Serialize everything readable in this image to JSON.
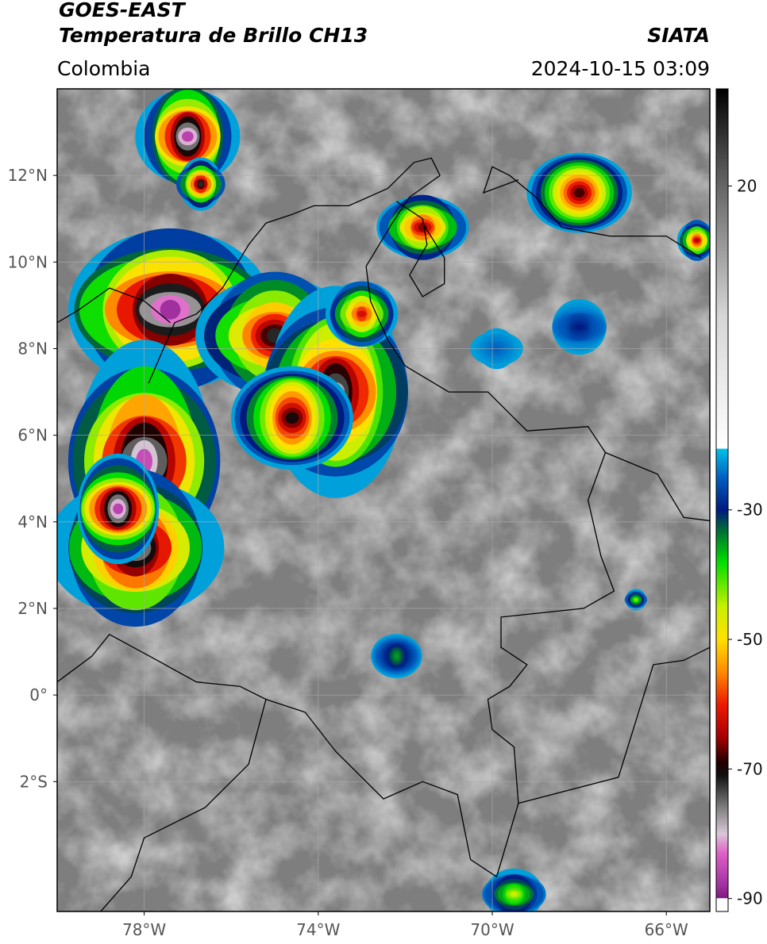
{
  "header": {
    "satellite": "GOES-EAST",
    "product": "Temperatura de Brillo CH13",
    "brand": "SIATA",
    "region": "Colombia",
    "timestamp": "2024-10-15 03:09"
  },
  "map": {
    "lon_range": [
      -80,
      -65
    ],
    "lat_range": [
      -5,
      14
    ],
    "lon_ticks": [
      {
        "value": -78,
        "label": "78°W"
      },
      {
        "value": -74,
        "label": "74°W"
      },
      {
        "value": -70,
        "label": "70°W"
      },
      {
        "value": -66,
        "label": "66°W"
      }
    ],
    "lat_ticks": [
      {
        "value": 12,
        "label": "12°N"
      },
      {
        "value": 10,
        "label": "10°N"
      },
      {
        "value": 8,
        "label": "8°N"
      },
      {
        "value": 6,
        "label": "6°N"
      },
      {
        "value": 4,
        "label": "4°N"
      },
      {
        "value": 2,
        "label": "2°N"
      },
      {
        "value": 0,
        "label": "0°"
      },
      {
        "value": -2,
        "label": "2°S"
      }
    ],
    "storm_cells": [
      {
        "lon": -77.4,
        "lat": 8.9,
        "rlon": 2.7,
        "rlat": 1.6,
        "peak": -88
      },
      {
        "lon": -75.0,
        "lat": 8.3,
        "rlon": 1.9,
        "rlat": 1.3,
        "peak": -72
      },
      {
        "lon": -73.6,
        "lat": 7.0,
        "rlon": 1.9,
        "rlat": 2.0,
        "peak": -78
      },
      {
        "lon": -74.6,
        "lat": 6.4,
        "rlon": 1.4,
        "rlat": 1.2,
        "peak": -70
      },
      {
        "lon": -78.0,
        "lat": 5.4,
        "rlon": 2.0,
        "rlat": 2.2,
        "peak": -85
      },
      {
        "lon": -78.2,
        "lat": 3.4,
        "rlon": 2.0,
        "rlat": 1.6,
        "peak": -80
      },
      {
        "lon": -78.6,
        "lat": 4.3,
        "rlon": 1.2,
        "rlat": 1.0,
        "peak": -86
      },
      {
        "lon": -77.0,
        "lat": 12.9,
        "rlon": 1.2,
        "rlat": 1.1,
        "peak": -86
      },
      {
        "lon": -76.7,
        "lat": 11.8,
        "rlon": 0.6,
        "rlat": 0.5,
        "peak": -72
      },
      {
        "lon": -71.6,
        "lat": 10.8,
        "rlon": 1.1,
        "rlat": 0.7,
        "peak": -66
      },
      {
        "lon": -68.0,
        "lat": 11.6,
        "rlon": 1.4,
        "rlat": 0.8,
        "peak": -68
      },
      {
        "lon": -65.3,
        "lat": 10.5,
        "rlon": 0.5,
        "rlat": 0.4,
        "peak": -64
      },
      {
        "lon": -73.0,
        "lat": 8.8,
        "rlon": 0.9,
        "rlat": 0.7,
        "peak": -62
      },
      {
        "lon": -69.5,
        "lat": -4.6,
        "rlon": 0.8,
        "rlat": 0.5,
        "peak": -45
      },
      {
        "lon": -72.2,
        "lat": 0.9,
        "rlon": 0.6,
        "rlat": 0.5,
        "peak": -35
      },
      {
        "lon": -66.7,
        "lat": 2.2,
        "rlon": 0.3,
        "rlat": 0.2,
        "peak": -42
      },
      {
        "lon": -69.9,
        "lat": 8.0,
        "rlon": 0.6,
        "rlat": 0.4,
        "peak": -25
      },
      {
        "lon": -68.0,
        "lat": 8.5,
        "rlon": 0.8,
        "rlat": 0.5,
        "peak": -30
      }
    ],
    "borders": [
      [
        [
          -77.9,
          7.2
        ],
        [
          -77.3,
          8.6
        ],
        [
          -76.8,
          8.8
        ],
        [
          -76.2,
          9.4
        ],
        [
          -75.6,
          10.4
        ],
        [
          -75.2,
          10.9
        ],
        [
          -74.6,
          11.1
        ],
        [
          -74.1,
          11.3
        ],
        [
          -73.3,
          11.3
        ],
        [
          -72.4,
          11.7
        ],
        [
          -71.8,
          12.3
        ],
        [
          -71.4,
          12.4
        ],
        [
          -71.2,
          12.0
        ]
      ],
      [
        [
          -71.2,
          12.0
        ],
        [
          -71.9,
          11.5
        ],
        [
          -72.3,
          10.9
        ],
        [
          -72.9,
          9.9
        ],
        [
          -72.8,
          9.1
        ],
        [
          -72.4,
          8.2
        ],
        [
          -72.0,
          7.6
        ],
        [
          -71.0,
          7.0
        ],
        [
          -70.1,
          7.0
        ],
        [
          -69.2,
          6.1
        ],
        [
          -67.8,
          6.2
        ],
        [
          -67.4,
          5.6
        ],
        [
          -67.8,
          4.5
        ],
        [
          -67.5,
          3.2
        ],
        [
          -67.2,
          2.4
        ],
        [
          -67.9,
          2.0
        ],
        [
          -69.8,
          1.8
        ],
        [
          -69.8,
          1.1
        ],
        [
          -69.2,
          0.7
        ],
        [
          -69.6,
          0.2
        ],
        [
          -70.1,
          -0.1
        ],
        [
          -70.0,
          -0.8
        ],
        [
          -69.5,
          -1.2
        ],
        [
          -69.4,
          -2.5
        ],
        [
          -69.9,
          -4.2
        ]
      ],
      [
        [
          -69.9,
          -4.2
        ],
        [
          -70.5,
          -3.8
        ],
        [
          -70.8,
          -2.3
        ],
        [
          -71.6,
          -2.0
        ],
        [
          -72.5,
          -2.4
        ],
        [
          -73.6,
          -1.3
        ],
        [
          -74.3,
          -0.4
        ],
        [
          -75.2,
          -0.1
        ],
        [
          -75.8,
          0.2
        ],
        [
          -76.8,
          0.3
        ],
        [
          -77.7,
          0.8
        ],
        [
          -78.8,
          1.4
        ]
      ],
      [
        [
          -75.2,
          -0.1
        ],
        [
          -75.6,
          -1.6
        ],
        [
          -76.6,
          -2.6
        ],
        [
          -78.0,
          -3.3
        ],
        [
          -78.3,
          -4.2
        ],
        [
          -79.0,
          -5.0
        ]
      ],
      [
        [
          -69.4,
          -2.5
        ],
        [
          -67.1,
          -1.9
        ],
        [
          -66.3,
          0.7
        ],
        [
          -65.6,
          0.8
        ],
        [
          -65.0,
          1.1
        ]
      ],
      [
        [
          -67.4,
          5.6
        ],
        [
          -66.2,
          5.1
        ],
        [
          -65.6,
          4.1
        ],
        [
          -64.8,
          4.0
        ]
      ],
      [
        [
          -69.4,
          11.9
        ],
        [
          -70.2,
          11.6
        ],
        [
          -70.0,
          12.2
        ],
        [
          -69.6,
          12.0
        ],
        [
          -69.0,
          11.5
        ],
        [
          -68.4,
          10.8
        ],
        [
          -67.3,
          10.6
        ],
        [
          -66.0,
          10.6
        ],
        [
          -65.2,
          10.1
        ]
      ],
      [
        [
          -72.2,
          11.4
        ],
        [
          -71.6,
          11.0
        ],
        [
          -71.5,
          10.4
        ],
        [
          -71.9,
          9.7
        ],
        [
          -71.6,
          9.2
        ],
        [
          -71.1,
          9.5
        ],
        [
          -71.1,
          10.1
        ],
        [
          -71.6,
          10.9
        ]
      ],
      [
        [
          -80.0,
          8.6
        ],
        [
          -79.5,
          8.9
        ],
        [
          -78.8,
          9.4
        ],
        [
          -78.0,
          9.1
        ],
        [
          -77.4,
          8.6
        ]
      ],
      [
        [
          -78.8,
          1.4
        ],
        [
          -79.2,
          0.9
        ],
        [
          -80.0,
          0.3
        ]
      ]
    ]
  },
  "colorbar": {
    "min": -92,
    "max": 35,
    "ticks": [
      {
        "value": 20,
        "label": "20"
      },
      {
        "value": -30,
        "label": "-30"
      },
      {
        "value": -50,
        "label": "-50"
      },
      {
        "value": -70,
        "label": "-70"
      },
      {
        "value": -90,
        "label": "-90"
      }
    ],
    "stops": [
      {
        "t": 35,
        "color": "#000000"
      },
      {
        "t": 22,
        "color": "#5a5a5a"
      },
      {
        "t": 0,
        "color": "#d6d6d6"
      },
      {
        "t": -20.5,
        "color": "#ffffff"
      },
      {
        "t": -20.6,
        "color": "#00c0e8"
      },
      {
        "t": -25,
        "color": "#0060c0"
      },
      {
        "t": -30,
        "color": "#001a80"
      },
      {
        "t": -33,
        "color": "#006838"
      },
      {
        "t": -38,
        "color": "#00dd00"
      },
      {
        "t": -45,
        "color": "#c8f000"
      },
      {
        "t": -50,
        "color": "#ffe000"
      },
      {
        "t": -55,
        "color": "#ff8a00"
      },
      {
        "t": -60,
        "color": "#ee1a00"
      },
      {
        "t": -65,
        "color": "#a80000"
      },
      {
        "t": -69,
        "color": "#200000"
      },
      {
        "t": -71,
        "color": "#101010"
      },
      {
        "t": -76,
        "color": "#808080"
      },
      {
        "t": -80,
        "color": "#d8c8d8"
      },
      {
        "t": -83,
        "color": "#e060c8"
      },
      {
        "t": -88,
        "color": "#a030a0"
      },
      {
        "t": -89.9,
        "color": "#801880"
      },
      {
        "t": -90,
        "color": "#ffffff"
      },
      {
        "t": -92,
        "color": "#ffffff"
      }
    ]
  }
}
